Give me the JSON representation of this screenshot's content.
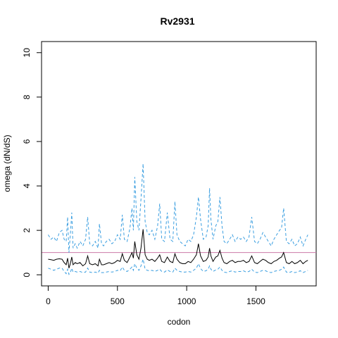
{
  "chart_data": {
    "type": "line",
    "title": "Rv2931",
    "xlabel": "codon",
    "ylabel": "omega (dN/dS)",
    "xlim": [
      -48,
      1935
    ],
    "ylim": [
      -0.5,
      10.5
    ],
    "xticks": [
      0,
      500,
      1000,
      1500
    ],
    "yticks": [
      0,
      2,
      4,
      6,
      8,
      10
    ],
    "reference_line": {
      "y": 1,
      "color": "#cc79a7"
    },
    "grid": false,
    "legend": "none",
    "colors": {
      "mean": "#000000",
      "bounds": "#3a9ee0",
      "frame": "#000000"
    },
    "series": [
      {
        "role": "upper",
        "style": "dashed",
        "x": [
          0,
          20,
          40,
          60,
          80,
          100,
          115,
          130,
          140,
          150,
          160,
          170,
          180,
          195,
          210,
          230,
          250,
          270,
          285,
          300,
          320,
          340,
          360,
          370,
          385,
          400,
          420,
          440,
          460,
          480,
          500,
          520,
          535,
          550,
          570,
          590,
          605,
          615,
          625,
          640,
          655,
          670,
          685,
          700,
          715,
          730,
          750,
          770,
          790,
          805,
          820,
          840,
          860,
          880,
          900,
          915,
          930,
          950,
          970,
          990,
          1010,
          1030,
          1050,
          1070,
          1085,
          1100,
          1120,
          1140,
          1155,
          1165,
          1175,
          1190,
          1210,
          1225,
          1240,
          1255,
          1270,
          1290,
          1310,
          1330,
          1350,
          1370,
          1390,
          1410,
          1430,
          1450,
          1470,
          1490,
          1510,
          1530,
          1550,
          1570,
          1590,
          1610,
          1630,
          1650,
          1670,
          1685,
          1700,
          1720,
          1740,
          1760,
          1780,
          1800,
          1820,
          1840,
          1860,
          1875
        ],
        "y": [
          1.8,
          1.6,
          1.7,
          1.5,
          1.9,
          2.0,
          1.6,
          1.5,
          2.6,
          1.0,
          1.8,
          2.8,
          1.2,
          1.4,
          1.2,
          1.5,
          1.3,
          1.6,
          2.6,
          1.4,
          1.3,
          1.5,
          1.2,
          2.3,
          1.4,
          1.3,
          1.5,
          1.6,
          1.4,
          1.5,
          1.8,
          1.6,
          2.7,
          1.6,
          1.5,
          2.1,
          3.0,
          2.0,
          4.4,
          2.4,
          2.0,
          3.4,
          5.0,
          2.4,
          1.9,
          1.8,
          2.0,
          1.6,
          2.2,
          3.2,
          1.6,
          1.5,
          2.8,
          1.6,
          1.5,
          3.3,
          1.8,
          1.5,
          1.4,
          1.3,
          1.6,
          1.5,
          1.8,
          2.6,
          3.5,
          2.5,
          1.6,
          1.7,
          2.2,
          3.9,
          2.5,
          1.6,
          2.2,
          2.4,
          3.5,
          2.2,
          1.5,
          1.4,
          1.6,
          1.8,
          1.5,
          1.7,
          1.6,
          1.7,
          1.5,
          1.7,
          2.6,
          1.5,
          1.4,
          1.6,
          1.9,
          1.7,
          1.5,
          1.3,
          1.6,
          1.8,
          2.0,
          2.1,
          3.0,
          1.5,
          1.4,
          1.6,
          1.3,
          1.4,
          1.7,
          1.3,
          1.6,
          1.8
        ]
      },
      {
        "role": "mean",
        "style": "solid",
        "x": [
          0,
          20,
          40,
          60,
          80,
          100,
          115,
          130,
          140,
          150,
          160,
          170,
          180,
          195,
          210,
          230,
          250,
          270,
          285,
          300,
          320,
          340,
          360,
          370,
          385,
          400,
          420,
          440,
          460,
          480,
          500,
          520,
          535,
          550,
          570,
          590,
          605,
          615,
          625,
          640,
          655,
          670,
          685,
          700,
          715,
          730,
          750,
          770,
          790,
          805,
          820,
          840,
          860,
          880,
          900,
          915,
          930,
          950,
          970,
          990,
          1010,
          1030,
          1050,
          1070,
          1085,
          1100,
          1120,
          1140,
          1155,
          1165,
          1175,
          1190,
          1210,
          1225,
          1240,
          1255,
          1270,
          1290,
          1310,
          1330,
          1350,
          1370,
          1390,
          1410,
          1430,
          1450,
          1470,
          1490,
          1510,
          1530,
          1550,
          1570,
          1590,
          1610,
          1630,
          1650,
          1670,
          1685,
          1700,
          1720,
          1740,
          1760,
          1780,
          1800,
          1820,
          1840,
          1860,
          1875
        ],
        "y": [
          0.7,
          0.68,
          0.65,
          0.7,
          0.72,
          0.7,
          0.55,
          0.45,
          0.75,
          0.3,
          0.5,
          0.8,
          0.45,
          0.55,
          0.5,
          0.55,
          0.4,
          0.5,
          0.85,
          0.5,
          0.45,
          0.5,
          0.4,
          0.7,
          0.45,
          0.45,
          0.5,
          0.55,
          0.5,
          0.55,
          0.65,
          0.6,
          0.95,
          0.65,
          0.55,
          0.8,
          1.0,
          0.75,
          1.5,
          0.9,
          0.7,
          1.2,
          2.05,
          0.9,
          0.7,
          0.65,
          0.7,
          0.6,
          0.75,
          0.9,
          0.6,
          0.55,
          0.8,
          0.6,
          0.55,
          0.95,
          0.7,
          0.55,
          0.5,
          0.5,
          0.6,
          0.55,
          0.7,
          0.9,
          1.4,
          0.85,
          0.6,
          0.65,
          0.8,
          1.2,
          0.85,
          0.6,
          0.8,
          0.85,
          1.1,
          0.75,
          0.55,
          0.5,
          0.6,
          0.65,
          0.55,
          0.6,
          0.6,
          0.65,
          0.55,
          0.6,
          0.85,
          0.55,
          0.5,
          0.6,
          0.7,
          0.65,
          0.55,
          0.5,
          0.6,
          0.65,
          0.75,
          0.8,
          1.0,
          0.55,
          0.5,
          0.6,
          0.5,
          0.55,
          0.65,
          0.5,
          0.6,
          0.65
        ]
      },
      {
        "role": "lower",
        "style": "dashed",
        "x": [
          0,
          20,
          40,
          60,
          80,
          100,
          115,
          130,
          140,
          150,
          160,
          170,
          180,
          195,
          210,
          230,
          250,
          270,
          285,
          300,
          320,
          340,
          360,
          370,
          385,
          400,
          420,
          440,
          460,
          480,
          500,
          520,
          535,
          550,
          570,
          590,
          605,
          615,
          625,
          640,
          655,
          670,
          685,
          700,
          715,
          730,
          750,
          770,
          790,
          805,
          820,
          840,
          860,
          880,
          900,
          915,
          930,
          950,
          970,
          990,
          1010,
          1030,
          1050,
          1070,
          1085,
          1100,
          1120,
          1140,
          1155,
          1165,
          1175,
          1190,
          1210,
          1225,
          1240,
          1255,
          1270,
          1290,
          1310,
          1330,
          1350,
          1370,
          1390,
          1410,
          1430,
          1450,
          1470,
          1490,
          1510,
          1530,
          1550,
          1570,
          1590,
          1610,
          1630,
          1650,
          1670,
          1685,
          1700,
          1720,
          1740,
          1760,
          1780,
          1800,
          1820,
          1840,
          1860,
          1875
        ],
        "y": [
          0.3,
          0.25,
          0.2,
          0.25,
          0.3,
          0.3,
          0.15,
          0.05,
          0.25,
          0.02,
          0.1,
          0.3,
          0.12,
          0.15,
          0.12,
          0.15,
          0.1,
          0.12,
          0.3,
          0.12,
          0.1,
          0.12,
          0.08,
          0.2,
          0.1,
          0.1,
          0.12,
          0.15,
          0.12,
          0.15,
          0.2,
          0.18,
          0.35,
          0.2,
          0.15,
          0.25,
          0.35,
          0.2,
          0.5,
          0.3,
          0.2,
          0.4,
          0.7,
          0.25,
          0.2,
          0.18,
          0.2,
          0.15,
          0.2,
          0.25,
          0.15,
          0.12,
          0.22,
          0.15,
          0.12,
          0.3,
          0.2,
          0.15,
          0.12,
          0.12,
          0.15,
          0.12,
          0.2,
          0.3,
          0.5,
          0.28,
          0.15,
          0.18,
          0.25,
          0.4,
          0.25,
          0.15,
          0.22,
          0.25,
          0.35,
          0.2,
          0.12,
          0.1,
          0.15,
          0.18,
          0.12,
          0.15,
          0.15,
          0.18,
          0.12,
          0.15,
          0.25,
          0.12,
          0.1,
          0.15,
          0.2,
          0.18,
          0.12,
          0.1,
          0.15,
          0.18,
          0.2,
          0.25,
          0.35,
          0.12,
          0.1,
          0.15,
          0.1,
          0.12,
          0.18,
          0.1,
          0.15,
          0.2
        ]
      }
    ]
  }
}
